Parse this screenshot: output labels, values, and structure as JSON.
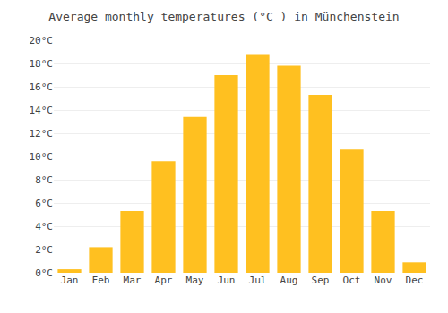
{
  "chart_data": {
    "type": "bar",
    "title": "Average monthly temperatures (°C ) in Münchenstein",
    "categories": [
      "Jan",
      "Feb",
      "Mar",
      "Apr",
      "May",
      "Jun",
      "Jul",
      "Aug",
      "Sep",
      "Oct",
      "Nov",
      "Dec"
    ],
    "values": [
      0.3,
      2.2,
      5.3,
      9.6,
      13.4,
      17.0,
      18.8,
      17.8,
      15.3,
      10.6,
      5.3,
      0.9
    ],
    "color": "#FFC020",
    "ylim": [
      0,
      20
    ],
    "yticks": [
      {
        "value": 0,
        "label": "0°C"
      },
      {
        "value": 2,
        "label": "2°C"
      },
      {
        "value": 4,
        "label": "4°C"
      },
      {
        "value": 6,
        "label": "6°C"
      },
      {
        "value": 8,
        "label": "8°C"
      },
      {
        "value": 10,
        "label": "10°C"
      },
      {
        "value": 12,
        "label": "12°C"
      },
      {
        "value": 14,
        "label": "14°C"
      },
      {
        "value": 16,
        "label": "16°C"
      },
      {
        "value": 18,
        "label": "18°C"
      },
      {
        "value": 20,
        "label": "20°C"
      }
    ],
    "grid": true
  }
}
